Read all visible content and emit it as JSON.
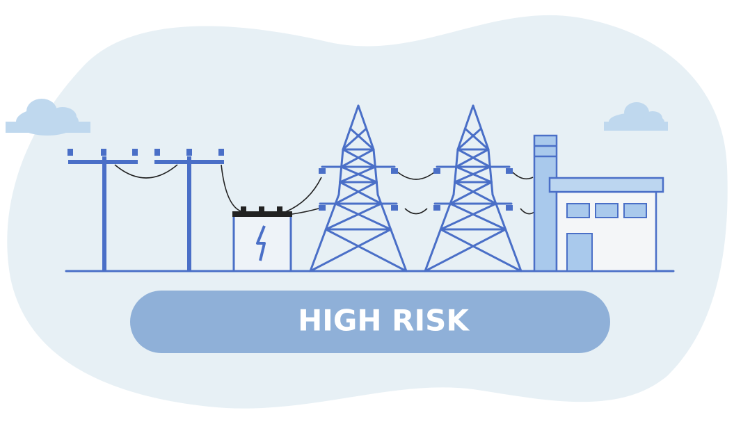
{
  "badge": {
    "label": "HIGH RISK"
  }
}
